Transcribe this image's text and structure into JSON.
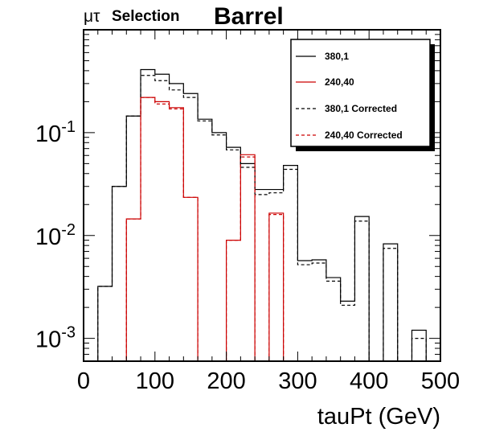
{
  "chart_data": {
    "type": "line",
    "title_left_symbol": "μτ",
    "title_left_text": "Selection",
    "title": "Barrel",
    "xlabel": "tauPt (GeV)",
    "ylabel": "",
    "xlim": [
      0,
      500
    ],
    "ylim": [
      0.0006,
      1.0
    ],
    "y_scale": "log",
    "legend_position": "top-right",
    "x_ticks": [
      "0",
      "100",
      "200",
      "300",
      "400",
      "500"
    ],
    "x_tick_values": [
      0,
      100,
      200,
      300,
      400,
      500
    ],
    "y_ticks": [
      {
        "value": 0.1,
        "base": "10",
        "exp": "-1"
      },
      {
        "value": 0.01,
        "base": "10",
        "exp": "-2"
      },
      {
        "value": 0.001,
        "base": "10",
        "exp": "-3"
      }
    ],
    "bin_edges": [
      0,
      20,
      40,
      60,
      80,
      100,
      120,
      140,
      160,
      180,
      200,
      220,
      240,
      260,
      280,
      300,
      320,
      340,
      360,
      380,
      400,
      420,
      440,
      460,
      480,
      500
    ],
    "series": [
      {
        "name": "380,1",
        "color": "#000000",
        "dash": "solid",
        "values": [
          0.0006,
          0.0032,
          0.03,
          0.145,
          0.41,
          0.37,
          0.3,
          0.24,
          0.135,
          0.1,
          0.072,
          0.05,
          0.028,
          0.028,
          0.048,
          0.0057,
          0.0058,
          0.0039,
          0.0023,
          0.0153,
          0.0006,
          0.0083,
          0.0006,
          0.0012,
          0.0006
        ]
      },
      {
        "name": "240,40",
        "color": "#cc0000",
        "dash": "solid",
        "values": [
          0.0006,
          0.0006,
          0.0006,
          0.0145,
          0.22,
          0.2,
          0.175,
          0.0235,
          0.0006,
          0.0006,
          0.009,
          0.061,
          0.0006,
          0.0165,
          0.0006,
          0.0006,
          0.0006,
          0.0006,
          0.0006,
          0.0006,
          0.0006,
          0.0006,
          0.0006,
          0.0006,
          0.0006
        ]
      },
      {
        "name": "380,1 Corrected",
        "color": "#000000",
        "dash": "dashed",
        "values": [
          0.0006,
          0.0032,
          0.03,
          0.145,
          0.36,
          0.32,
          0.26,
          0.22,
          0.13,
          0.095,
          0.068,
          0.046,
          0.025,
          0.026,
          0.044,
          0.0052,
          0.0054,
          0.0036,
          0.0021,
          0.0138,
          0.0006,
          0.0075,
          0.0006,
          0.001,
          0.0006
        ]
      },
      {
        "name": "240,40 Corrected",
        "color": "#cc0000",
        "dash": "dashed",
        "values": [
          0.0006,
          0.0006,
          0.0006,
          0.0145,
          0.22,
          0.19,
          0.17,
          0.0235,
          0.0006,
          0.0006,
          0.009,
          0.058,
          0.0006,
          0.016,
          0.0006,
          0.0006,
          0.0006,
          0.0006,
          0.0006,
          0.0006,
          0.0006,
          0.0006,
          0.0006,
          0.0006,
          0.0006
        ]
      }
    ]
  }
}
